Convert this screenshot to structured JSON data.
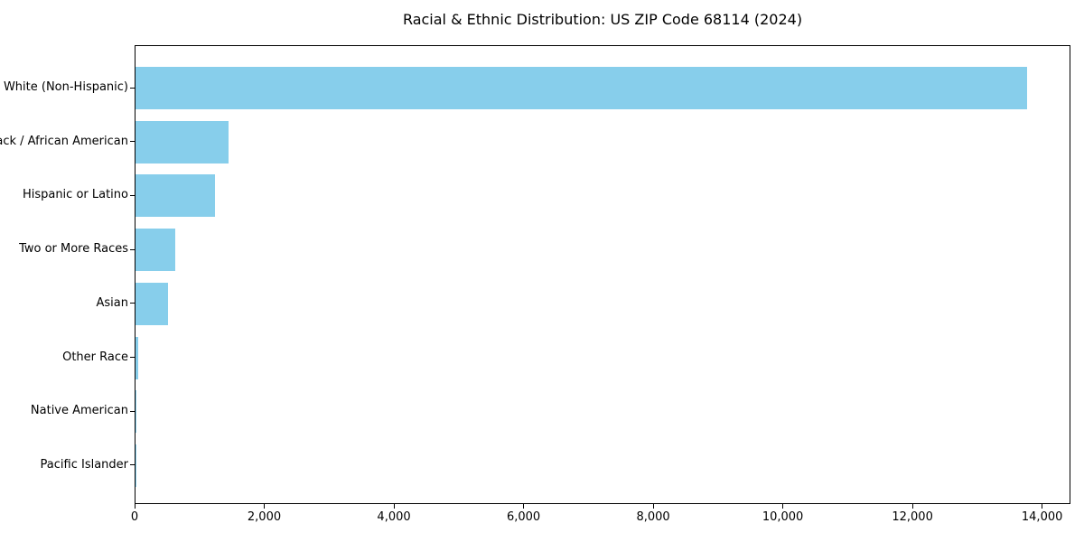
{
  "chart_data": {
    "type": "bar",
    "orientation": "horizontal",
    "title": "Racial & Ethnic Distribution: US ZIP Code 68114 (2024)",
    "categories": [
      "White (Non-Hispanic)",
      "Black / African American",
      "Hispanic or Latino",
      "Two or More Races",
      "Asian",
      "Other Race",
      "Native American",
      "Pacific Islander"
    ],
    "values": [
      13750,
      1430,
      1225,
      610,
      500,
      40,
      10,
      5
    ],
    "xlabel": "",
    "ylabel": "",
    "xlim": [
      0,
      14437
    ],
    "x_ticks": [
      0,
      2000,
      4000,
      6000,
      8000,
      10000,
      12000,
      14000
    ],
    "x_tick_labels": [
      "0",
      "2,000",
      "4,000",
      "6,000",
      "8,000",
      "10,000",
      "12,000",
      "14,000"
    ],
    "bar_color": "#87CEEB",
    "background_color": "#ffffff",
    "text_color": "#000000",
    "grid": false,
    "legend": null
  }
}
